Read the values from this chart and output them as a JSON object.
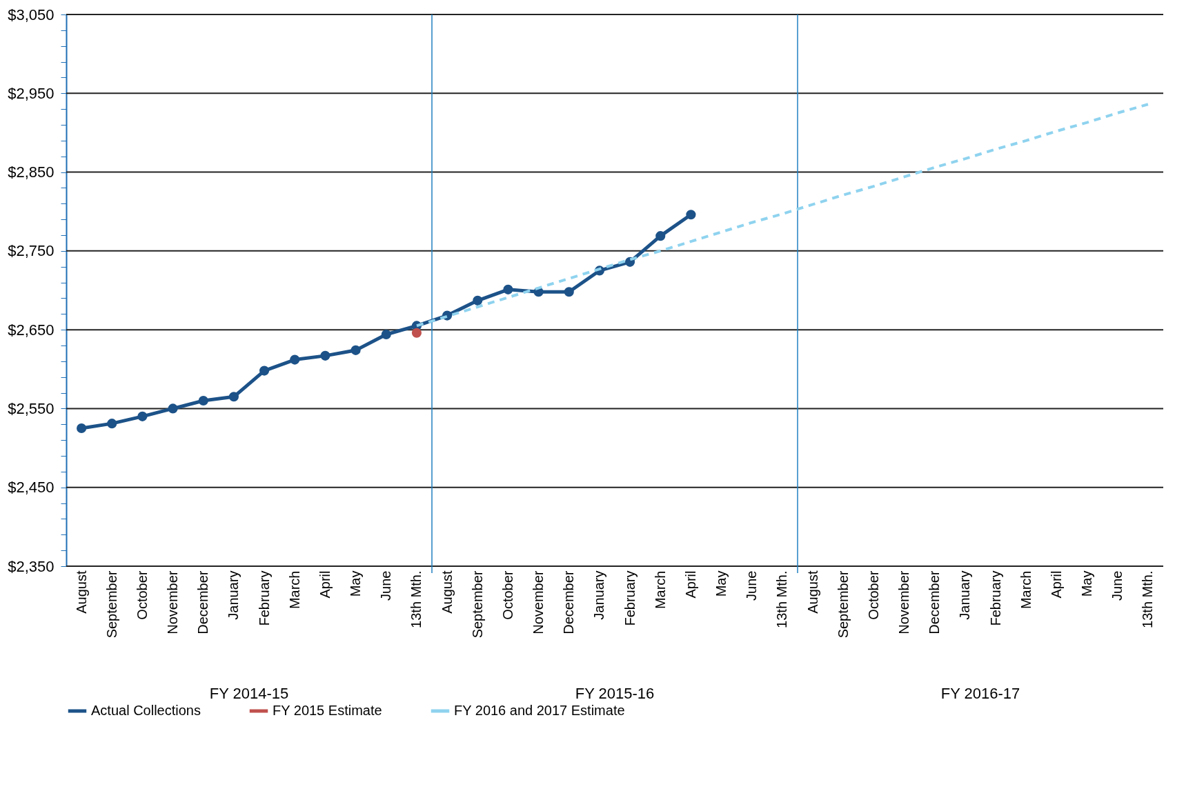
{
  "chart_data": {
    "type": "line",
    "categories": [
      "August",
      "September",
      "October",
      "November",
      "December",
      "January",
      "February",
      "March",
      "April",
      "May",
      "June",
      "13th Mth.",
      "August",
      "September",
      "October",
      "November",
      "December",
      "January",
      "February",
      "March",
      "April",
      "May",
      "June",
      "13th Mth.",
      "August",
      "September",
      "October",
      "November",
      "December",
      "January",
      "February",
      "March",
      "April",
      "May",
      "June",
      "13th Mth."
    ],
    "series": [
      {
        "name": "Actual Collections",
        "color": "#1c5288",
        "marker": "circle",
        "line_style": "solid",
        "values": [
          2525,
          2531,
          2540,
          2550,
          2560,
          2565,
          2598,
          2612,
          2617,
          2624,
          2644,
          2655,
          2668,
          2687,
          2701,
          2698,
          2698,
          2725,
          2736,
          2769,
          2796,
          null,
          null,
          null,
          null,
          null,
          null,
          null,
          null,
          null,
          null,
          null,
          null,
          null,
          null,
          null
        ]
      },
      {
        "name": "FY 2015 Estimate",
        "color": "#c0504d",
        "marker": "circle",
        "line_style": "solid",
        "values": [
          null,
          null,
          null,
          null,
          null,
          null,
          null,
          null,
          null,
          null,
          null,
          2646,
          null,
          null,
          null,
          null,
          null,
          null,
          null,
          null,
          null,
          null,
          null,
          null,
          null,
          null,
          null,
          null,
          null,
          null,
          null,
          null,
          null,
          null,
          null,
          null
        ]
      },
      {
        "name": "FY 2016 and 2017 Estimate",
        "color": "#8fd3ef",
        "marker": "none",
        "line_style": "dashed",
        "values": [
          null,
          null,
          null,
          null,
          null,
          null,
          null,
          null,
          null,
          null,
          null,
          2655,
          2667,
          2679,
          2691,
          2703,
          2715,
          2727,
          2739,
          2750,
          2762,
          2774,
          2786,
          2797,
          2809,
          2821,
          2832,
          2844,
          2856,
          2867,
          2879,
          2890,
          2902,
          2913,
          2925,
          2936
        ]
      }
    ],
    "ylim": [
      2350,
      3050
    ],
    "yticks": [
      {
        "value": 2350,
        "label": "$2,350"
      },
      {
        "value": 2370,
        "label": null
      },
      {
        "value": 2390,
        "label": null
      },
      {
        "value": 2410,
        "label": null
      },
      {
        "value": 2430,
        "label": null
      },
      {
        "value": 2450,
        "label": "$2,450"
      },
      {
        "value": 2470,
        "label": null
      },
      {
        "value": 2490,
        "label": null
      },
      {
        "value": 2510,
        "label": null
      },
      {
        "value": 2530,
        "label": null
      },
      {
        "value": 2550,
        "label": "$2,550"
      },
      {
        "value": 2570,
        "label": null
      },
      {
        "value": 2590,
        "label": null
      },
      {
        "value": 2610,
        "label": null
      },
      {
        "value": 2630,
        "label": null
      },
      {
        "value": 2650,
        "label": "$2,650"
      },
      {
        "value": 2670,
        "label": null
      },
      {
        "value": 2690,
        "label": null
      },
      {
        "value": 2710,
        "label": null
      },
      {
        "value": 2730,
        "label": null
      },
      {
        "value": 2750,
        "label": "$2,750"
      },
      {
        "value": 2770,
        "label": null
      },
      {
        "value": 2790,
        "label": null
      },
      {
        "value": 2810,
        "label": null
      },
      {
        "value": 2830,
        "label": null
      },
      {
        "value": 2850,
        "label": "$2,850"
      },
      {
        "value": 2870,
        "label": null
      },
      {
        "value": 2890,
        "label": null
      },
      {
        "value": 2910,
        "label": null
      },
      {
        "value": 2930,
        "label": null
      },
      {
        "value": 2950,
        "label": "$2,950"
      },
      {
        "value": 2970,
        "label": null
      },
      {
        "value": 2990,
        "label": null
      },
      {
        "value": 3010,
        "label": null
      },
      {
        "value": 3030,
        "label": null
      },
      {
        "value": 3050,
        "label": "$3,050"
      }
    ],
    "annotations": [
      "FY 2014-15",
      "FY 2015-16",
      "FY 2016-17"
    ],
    "grid": "y",
    "legend": "bottom"
  }
}
